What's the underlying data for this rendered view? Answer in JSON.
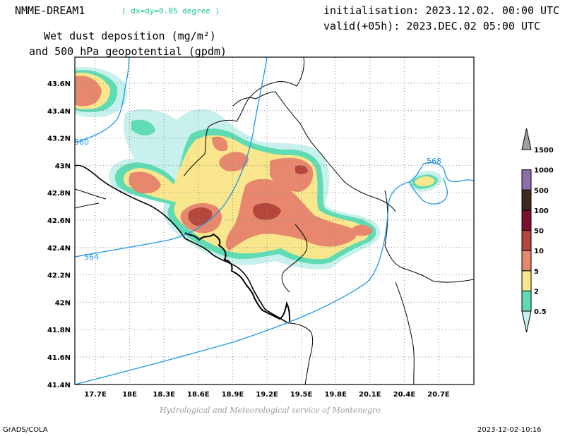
{
  "header": {
    "model": "NMME-DREAM1",
    "resolution": "( dx=dy=0.05 degree )",
    "field_line1": "Wet dust deposition (mg/m²)",
    "field_line2": "and 500 hPa geopotential (gpdm)",
    "init": "initialisation: 2023.12.02. 00:00 UTC",
    "valid": "valid(+05h): 2023.DEC.02 05:00 UTC"
  },
  "map": {
    "lon_labels": [
      "17.7E",
      "18E",
      "18.3E",
      "18.6E",
      "18.9E",
      "19.2E",
      "19.5E",
      "19.8E",
      "20.1E",
      "20.4E",
      "20.7E"
    ],
    "lat_labels": [
      "43.6N",
      "43.4N",
      "43.2N",
      "43N",
      "42.8N",
      "42.6N",
      "42.4N",
      "42.2N",
      "42N",
      "41.8N",
      "41.6N",
      "41.4N"
    ],
    "contour_labels": [
      "560",
      "564",
      "568"
    ],
    "contour_color": "#1e96e6",
    "grid": true
  },
  "legend": {
    "labels": [
      "0.5",
      "2",
      "5",
      "10",
      "50",
      "100",
      "500",
      "1000",
      "1500"
    ],
    "colors": [
      "#c8f0ec",
      "#5fdcb4",
      "#fae68c",
      "#e6876e",
      "#b4463c",
      "#7d0f2d",
      "#3c2a1e",
      "#8c6eaa",
      "#a0a0a0"
    ]
  },
  "footer": {
    "credit": "Hydrological and Meteorological service of Montenegro",
    "software": "GrADS/COLA",
    "timestamp": "2023-12-02-10:16"
  }
}
